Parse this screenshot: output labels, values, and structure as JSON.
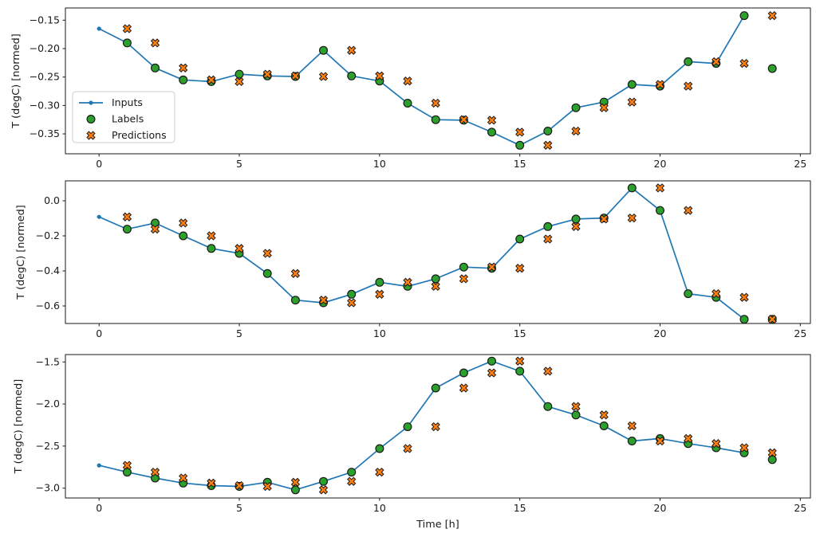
{
  "figure": {
    "background": "#ffffff",
    "axes_color": "#1a1a1a"
  },
  "legend": {
    "items": [
      {
        "label": "Inputs",
        "marker": "line-with-dot",
        "color": "#1f77b4"
      },
      {
        "label": "Labels",
        "marker": "filled-circle",
        "color": "#2ca02c"
      },
      {
        "label": "Predictions",
        "marker": "filled-x",
        "color": "#ff7f0e"
      }
    ],
    "border_color": "#cccccc",
    "background": "#ffffff"
  },
  "chart_data": {
    "type": "line",
    "xlabel": "Time [h]",
    "x_ticks": [
      0,
      5,
      10,
      15,
      20,
      25
    ],
    "x_tick_labels": [
      "0",
      "5",
      "10",
      "15",
      "20",
      "25"
    ],
    "xlim": [
      -1.2,
      25.36
    ],
    "grid": false,
    "legend_position": "upper-left-of-first-subplot",
    "colors": {
      "inputs": "#1f77b4",
      "labels": "#2ca02c",
      "predictions": "#ff7f0e",
      "marker_edge": "#1a1a1a"
    },
    "subplots": [
      {
        "ylabel": "T (degC) [normed]",
        "ylim": [
          -0.385,
          -0.1285
        ],
        "yticks": [
          -0.15,
          -0.2,
          -0.25,
          -0.3,
          -0.35
        ],
        "ytick_labels": [
          "−0.15",
          "−0.20",
          "−0.25",
          "−0.30",
          "−0.35"
        ],
        "series": [
          {
            "name": "Inputs",
            "type": "line",
            "x": [
              0,
              1,
              2,
              3,
              4,
              5,
              6,
              7,
              8,
              9,
              10,
              11,
              12,
              13,
              14,
              15,
              16,
              17,
              18,
              19,
              20,
              21,
              22,
              23
            ],
            "y": [
              -0.165,
              -0.19,
              -0.234,
              -0.255,
              -0.258,
              -0.245,
              -0.248,
              -0.249,
              -0.203,
              -0.248,
              -0.257,
              -0.296,
              -0.325,
              -0.326,
              -0.347,
              -0.37,
              -0.345,
              -0.304,
              -0.294,
              -0.263,
              -0.266,
              -0.223,
              -0.226,
              -0.142
            ]
          },
          {
            "name": "Labels",
            "type": "scatter-circle",
            "x": [
              1,
              2,
              3,
              4,
              5,
              6,
              7,
              8,
              9,
              10,
              11,
              12,
              13,
              14,
              15,
              16,
              17,
              18,
              19,
              20,
              21,
              22,
              23,
              24
            ],
            "y": [
              -0.19,
              -0.234,
              -0.255,
              -0.258,
              -0.245,
              -0.248,
              -0.249,
              -0.203,
              -0.248,
              -0.257,
              -0.296,
              -0.325,
              -0.326,
              -0.347,
              -0.37,
              -0.345,
              -0.304,
              -0.294,
              -0.263,
              -0.266,
              -0.223,
              -0.226,
              -0.142,
              -0.235
            ]
          },
          {
            "name": "Predictions",
            "type": "scatter-x",
            "x": [
              1,
              2,
              3,
              4,
              5,
              6,
              7,
              8,
              9,
              10,
              11,
              12,
              13,
              14,
              15,
              16,
              17,
              18,
              19,
              20,
              21,
              22,
              23,
              24
            ],
            "y": [
              -0.165,
              -0.19,
              -0.234,
              -0.255,
              -0.258,
              -0.245,
              -0.248,
              -0.249,
              -0.203,
              -0.248,
              -0.257,
              -0.296,
              -0.325,
              -0.326,
              -0.347,
              -0.37,
              -0.345,
              -0.304,
              -0.294,
              -0.263,
              -0.266,
              -0.223,
              -0.226,
              -0.142
            ]
          }
        ]
      },
      {
        "ylabel": "T (degC) [normed]",
        "ylim": [
          -0.7,
          0.1136
        ],
        "yticks": [
          0.0,
          -0.2,
          -0.4,
          -0.6
        ],
        "ytick_labels": [
          "0.0",
          "−0.2",
          "−0.4",
          "−0.6"
        ],
        "series": [
          {
            "name": "Inputs",
            "type": "line",
            "x": [
              0,
              1,
              2,
              3,
              4,
              5,
              6,
              7,
              8,
              9,
              10,
              11,
              12,
              13,
              14,
              15,
              16,
              17,
              18,
              19,
              20,
              21,
              22,
              23
            ],
            "y": [
              -0.092,
              -0.162,
              -0.127,
              -0.2,
              -0.272,
              -0.3,
              -0.415,
              -0.567,
              -0.582,
              -0.533,
              -0.465,
              -0.488,
              -0.445,
              -0.378,
              -0.385,
              -0.218,
              -0.147,
              -0.104,
              -0.098,
              0.073,
              -0.055,
              -0.53,
              -0.551,
              -0.676
            ]
          },
          {
            "name": "Labels",
            "type": "scatter-circle",
            "x": [
              1,
              2,
              3,
              4,
              5,
              6,
              7,
              8,
              9,
              10,
              11,
              12,
              13,
              14,
              15,
              16,
              17,
              18,
              19,
              20,
              21,
              22,
              23,
              24
            ],
            "y": [
              -0.162,
              -0.127,
              -0.2,
              -0.272,
              -0.3,
              -0.415,
              -0.567,
              -0.582,
              -0.533,
              -0.465,
              -0.488,
              -0.445,
              -0.378,
              -0.385,
              -0.218,
              -0.147,
              -0.104,
              -0.098,
              0.073,
              -0.055,
              -0.53,
              -0.551,
              -0.676,
              -0.676
            ]
          },
          {
            "name": "Predictions",
            "type": "scatter-x",
            "x": [
              1,
              2,
              3,
              4,
              5,
              6,
              7,
              8,
              9,
              10,
              11,
              12,
              13,
              14,
              15,
              16,
              17,
              18,
              19,
              20,
              21,
              22,
              23,
              24
            ],
            "y": [
              -0.092,
              -0.162,
              -0.127,
              -0.2,
              -0.272,
              -0.3,
              -0.415,
              -0.567,
              -0.582,
              -0.533,
              -0.465,
              -0.488,
              -0.445,
              -0.378,
              -0.385,
              -0.218,
              -0.147,
              -0.104,
              -0.098,
              0.073,
              -0.055,
              -0.53,
              -0.551,
              -0.676
            ]
          }
        ]
      },
      {
        "ylabel": "T (degC) [normed]",
        "ylim": [
          -3.117,
          -1.412
        ],
        "yticks": [
          -1.5,
          -2.0,
          -2.5,
          -3.0
        ],
        "ytick_labels": [
          "−1.5",
          "−2.0",
          "−2.5",
          "−3.0"
        ],
        "series": [
          {
            "name": "Inputs",
            "type": "line",
            "x": [
              0,
              1,
              2,
              3,
              4,
              5,
              6,
              7,
              8,
              9,
              10,
              11,
              12,
              13,
              14,
              15,
              16,
              17,
              18,
              19,
              20,
              21,
              22,
              23
            ],
            "y": [
              -2.73,
              -2.81,
              -2.88,
              -2.94,
              -2.97,
              -2.98,
              -2.93,
              -3.02,
              -2.92,
              -2.81,
              -2.53,
              -2.27,
              -1.81,
              -1.63,
              -1.49,
              -1.61,
              -2.03,
              -2.13,
              -2.26,
              -2.44,
              -2.41,
              -2.47,
              -2.52,
              -2.58
            ]
          },
          {
            "name": "Labels",
            "type": "scatter-circle",
            "x": [
              1,
              2,
              3,
              4,
              5,
              6,
              7,
              8,
              9,
              10,
              11,
              12,
              13,
              14,
              15,
              16,
              17,
              18,
              19,
              20,
              21,
              22,
              23,
              24
            ],
            "y": [
              -2.81,
              -2.88,
              -2.94,
              -2.97,
              -2.98,
              -2.93,
              -3.02,
              -2.92,
              -2.81,
              -2.53,
              -2.27,
              -1.81,
              -1.63,
              -1.49,
              -1.61,
              -2.03,
              -2.13,
              -2.26,
              -2.44,
              -2.41,
              -2.47,
              -2.52,
              -2.58,
              -2.66
            ]
          },
          {
            "name": "Predictions",
            "type": "scatter-x",
            "x": [
              1,
              2,
              3,
              4,
              5,
              6,
              7,
              8,
              9,
              10,
              11,
              12,
              13,
              14,
              15,
              16,
              17,
              18,
              19,
              20,
              21,
              22,
              23,
              24
            ],
            "y": [
              -2.73,
              -2.81,
              -2.88,
              -2.94,
              -2.97,
              -2.98,
              -2.93,
              -3.02,
              -2.92,
              -2.81,
              -2.53,
              -2.27,
              -1.81,
              -1.63,
              -1.49,
              -1.61,
              -2.03,
              -2.13,
              -2.26,
              -2.44,
              -2.41,
              -2.47,
              -2.52,
              -2.58
            ]
          }
        ]
      }
    ]
  }
}
